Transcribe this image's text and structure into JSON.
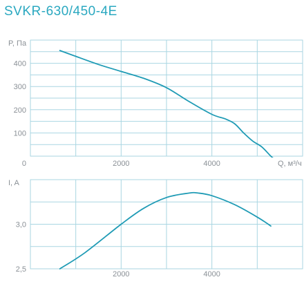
{
  "title": "SVKR-630/450-4E",
  "colors": {
    "curve": "#1f9bb5",
    "grid": "#a9d6e2",
    "text": "#8a9096",
    "title": "#2aa8c0"
  },
  "chart_data": [
    {
      "type": "line",
      "name": "pressure",
      "ylabel": "P, Па",
      "xlabel": "Q, м³/ч",
      "xlim": [
        0,
        6000
      ],
      "ylim": [
        0,
        500
      ],
      "x_ticks": [
        {
          "v": 0,
          "label": "0"
        },
        {
          "v": 2000,
          "label": "2000"
        },
        {
          "v": 4000,
          "label": "4000"
        }
      ],
      "y_ticks": [
        {
          "v": 100,
          "label": "100"
        },
        {
          "v": 200,
          "label": "200"
        },
        {
          "v": 300,
          "label": "300"
        },
        {
          "v": 400,
          "label": "400"
        }
      ],
      "grid_x": [
        1000,
        2000,
        3000,
        4000,
        5000
      ],
      "grid_y": [
        50,
        100,
        150,
        200,
        250,
        300,
        350,
        400,
        450
      ],
      "series": [
        {
          "x": [
            650,
            1000,
            1500,
            2000,
            2500,
            3000,
            3500,
            4000,
            4300,
            4500,
            4700,
            4900,
            5100,
            5300,
            5400
          ],
          "y": [
            455,
            430,
            395,
            365,
            335,
            295,
            235,
            180,
            160,
            140,
            100,
            65,
            40,
            0,
            -15
          ]
        }
      ]
    },
    {
      "type": "line",
      "name": "current",
      "ylabel": "I, A",
      "xlabel": "",
      "xlim": [
        0,
        6000
      ],
      "ylim": [
        2.5,
        3.5
      ],
      "x_ticks": [
        {
          "v": 2000,
          "label": "2000"
        },
        {
          "v": 4000,
          "label": "4000"
        }
      ],
      "y_ticks": [
        {
          "v": 2.5,
          "label": "2,5"
        },
        {
          "v": 3.0,
          "label": "3,0"
        }
      ],
      "grid_x": [
        1000,
        2000,
        3000,
        4000,
        5000
      ],
      "grid_y": [
        2.5,
        2.75,
        3.0,
        3.25
      ],
      "series": [
        {
          "x": [
            650,
            1200,
            2000,
            2500,
            3000,
            3500,
            3700,
            4000,
            4500,
            5000,
            5300
          ],
          "y": [
            2.5,
            2.68,
            3.0,
            3.18,
            3.3,
            3.35,
            3.35,
            3.32,
            3.22,
            3.08,
            2.98
          ]
        }
      ]
    }
  ]
}
